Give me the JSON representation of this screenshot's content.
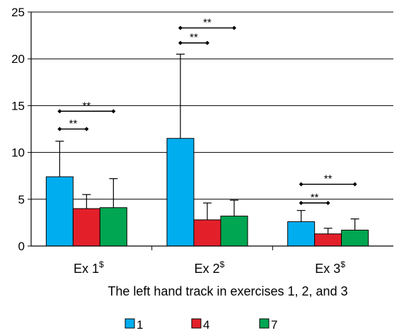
{
  "chart_data": {
    "type": "bar",
    "title": "",
    "xlabel": "The left hand track in exercises 1, 2, and 3",
    "ylabel": "",
    "ylim": [
      0,
      25
    ],
    "yticks": [
      "0",
      "5",
      "10",
      "15",
      "20",
      "25"
    ],
    "grid": true,
    "legend_position": "bottom",
    "categories": [
      {
        "label": "Ex 1",
        "sup": "$"
      },
      {
        "label": "Ex 2",
        "sup": "$"
      },
      {
        "label": "Ex 3",
        "sup": "$"
      }
    ],
    "series": [
      {
        "name": "1",
        "color": "#00AEEF",
        "values": [
          7.4,
          11.5,
          2.6
        ],
        "error_upper": [
          11.2,
          20.5,
          3.8
        ]
      },
      {
        "name": "4",
        "color": "#E3202A",
        "values": [
          4.0,
          2.8,
          1.3
        ],
        "error_upper": [
          5.5,
          4.6,
          1.9
        ]
      },
      {
        "name": "7",
        "color": "#00A651",
        "values": [
          4.1,
          3.2,
          1.7
        ],
        "error_upper": [
          7.2,
          4.9,
          2.9
        ]
      }
    ],
    "significance": [
      {
        "category": 0,
        "from_series": 0,
        "to_series": 1,
        "level": 12.5,
        "label": "**"
      },
      {
        "category": 0,
        "from_series": 0,
        "to_series": 2,
        "level": 14.4,
        "label": "**"
      },
      {
        "category": 1,
        "from_series": 0,
        "to_series": 1,
        "level": 21.7,
        "label": "**"
      },
      {
        "category": 1,
        "from_series": 0,
        "to_series": 2,
        "level": 23.3,
        "label": "**"
      },
      {
        "category": 2,
        "from_series": 0,
        "to_series": 1,
        "level": 4.6,
        "label": "**"
      },
      {
        "category": 2,
        "from_series": 0,
        "to_series": 2,
        "level": 6.6,
        "label": "**"
      }
    ]
  }
}
